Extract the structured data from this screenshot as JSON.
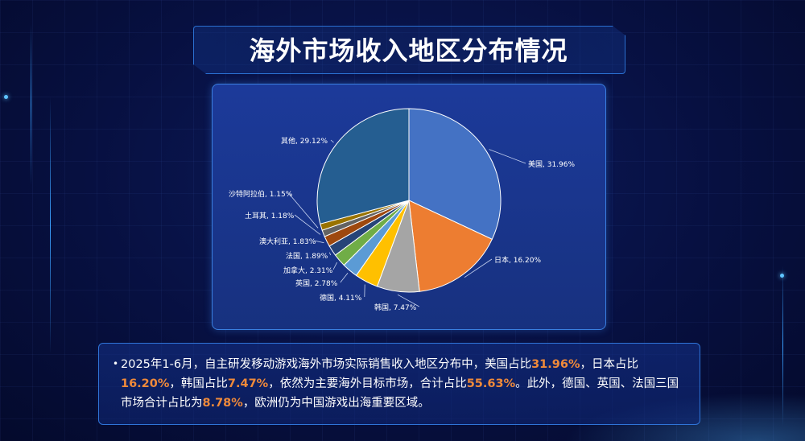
{
  "title": "海外市场收入地区分布情况",
  "chart_data": {
    "type": "pie",
    "slices": [
      {
        "label": "美国",
        "value": 31.96,
        "text": "美国, 31.96%",
        "color": "#4472c4"
      },
      {
        "label": "日本",
        "value": 16.2,
        "text": "日本, 16.20%",
        "color": "#ed7d31"
      },
      {
        "label": "韩国",
        "value": 7.47,
        "text": "韩国, 7.47%",
        "color": "#a5a5a5"
      },
      {
        "label": "德国",
        "value": 4.11,
        "text": "德国, 4.11%",
        "color": "#ffc000"
      },
      {
        "label": "英国",
        "value": 2.78,
        "text": "英国, 2.78%",
        "color": "#5b9bd5"
      },
      {
        "label": "加拿大",
        "value": 2.31,
        "text": "加拿大, 2.31%",
        "color": "#70ad47"
      },
      {
        "label": "法国",
        "value": 1.89,
        "text": "法国, 1.89%",
        "color": "#264478"
      },
      {
        "label": "澳大利亚",
        "value": 1.83,
        "text": "澳大利亚, 1.83%",
        "color": "#9e480e"
      },
      {
        "label": "土耳其",
        "value": 1.18,
        "text": "土耳其, 1.18%",
        "color": "#636363"
      },
      {
        "label": "沙特阿拉伯",
        "value": 1.15,
        "text": "沙特阿拉伯, 1.15%",
        "color": "#997300"
      },
      {
        "label": "其他",
        "value": 29.12,
        "text": "其他, 29.12%",
        "color": "#255e91"
      }
    ]
  },
  "summary": {
    "p1": "2025年1-6月，自主研发移动游戏海外市场实际销售收入地区分布中，美国占比",
    "v1": "31.96%",
    "p2": "，日本占比",
    "v2": "16.20%",
    "p3": "，韩国占比",
    "v3": "7.47%",
    "p4": "，依然为主要海外目标市场，合计占比",
    "v4": "55.63%",
    "p5": "。此外，德国、英国、法国三国市场合计占比为",
    "v5": "8.78%",
    "p6": "，欧洲仍为中国游戏出海重要区域。"
  }
}
